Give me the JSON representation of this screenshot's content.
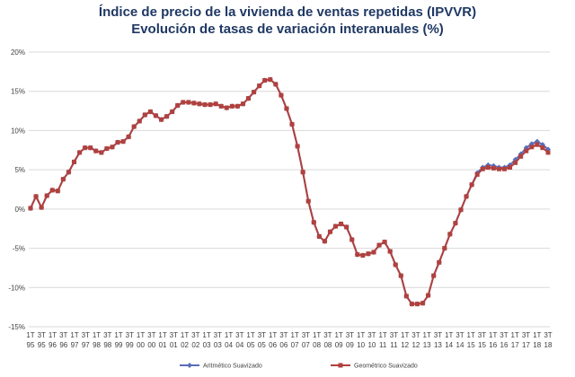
{
  "chart_data": {
    "type": "line",
    "title": "Índice de precio de la vivienda de ventas repetidas (IPVVR)",
    "subtitle": "Evolución de tasas de variación interanuales (%)",
    "ylim": [
      -15,
      20
    ],
    "yticks": [
      "20%",
      "15%",
      "10%",
      "5%",
      "0%",
      "-5%",
      "-10%",
      "-15%"
    ],
    "ytick_values": [
      20,
      15,
      10,
      5,
      0,
      -5,
      -10,
      -15
    ],
    "grid": "horizontal",
    "legend_position": "bottom",
    "x_tick_labels": [
      {
        "q": "1T",
        "y": "95"
      },
      {
        "q": "3T",
        "y": "95"
      },
      {
        "q": "1T",
        "y": "96"
      },
      {
        "q": "3T",
        "y": "96"
      },
      {
        "q": "1T",
        "y": "97"
      },
      {
        "q": "3T",
        "y": "97"
      },
      {
        "q": "1T",
        "y": "98"
      },
      {
        "q": "3T",
        "y": "98"
      },
      {
        "q": "1T",
        "y": "99"
      },
      {
        "q": "3T",
        "y": "99"
      },
      {
        "q": "1T",
        "y": "00"
      },
      {
        "q": "3T",
        "y": "00"
      },
      {
        "q": "1T",
        "y": "01"
      },
      {
        "q": "3T",
        "y": "01"
      },
      {
        "q": "1T",
        "y": "02"
      },
      {
        "q": "3T",
        "y": "02"
      },
      {
        "q": "1T",
        "y": "03"
      },
      {
        "q": "3T",
        "y": "03"
      },
      {
        "q": "1T",
        "y": "04"
      },
      {
        "q": "3T",
        "y": "04"
      },
      {
        "q": "1T",
        "y": "05"
      },
      {
        "q": "3T",
        "y": "05"
      },
      {
        "q": "1T",
        "y": "06"
      },
      {
        "q": "3T",
        "y": "06"
      },
      {
        "q": "1T",
        "y": "07"
      },
      {
        "q": "3T",
        "y": "07"
      },
      {
        "q": "1T",
        "y": "08"
      },
      {
        "q": "3T",
        "y": "08"
      },
      {
        "q": "1T",
        "y": "09"
      },
      {
        "q": "3T",
        "y": "09"
      },
      {
        "q": "1T",
        "y": "10"
      },
      {
        "q": "3T",
        "y": "10"
      },
      {
        "q": "1T",
        "y": "11"
      },
      {
        "q": "3T",
        "y": "11"
      },
      {
        "q": "1T",
        "y": "12"
      },
      {
        "q": "3T",
        "y": "12"
      },
      {
        "q": "1T",
        "y": "13"
      },
      {
        "q": "3T",
        "y": "13"
      },
      {
        "q": "1T",
        "y": "14"
      },
      {
        "q": "3T",
        "y": "14"
      },
      {
        "q": "1T",
        "y": "15"
      },
      {
        "q": "3T",
        "y": "15"
      },
      {
        "q": "1T",
        "y": "16"
      },
      {
        "q": "3T",
        "y": "16"
      },
      {
        "q": "1T",
        "y": "17"
      },
      {
        "q": "3T",
        "y": "17"
      },
      {
        "q": "1T",
        "y": "18"
      },
      {
        "q": "3T",
        "y": "18"
      }
    ],
    "series": [
      {
        "name": "Aritmético Suavizado",
        "color": "#5b6db8",
        "marker": "diamond",
        "values": [
          0.1,
          1.6,
          0.2,
          1.7,
          2.4,
          2.3,
          3.8,
          4.7,
          6.0,
          7.2,
          7.8,
          7.8,
          7.4,
          7.2,
          7.7,
          7.9,
          8.5,
          8.6,
          9.2,
          10.5,
          11.2,
          12.0,
          12.4,
          11.9,
          11.4,
          11.8,
          12.4,
          13.2,
          13.6,
          13.6,
          13.5,
          13.4,
          13.3,
          13.3,
          13.4,
          13.1,
          12.9,
          13.1,
          13.1,
          13.4,
          14.1,
          14.9,
          15.7,
          16.4,
          16.5,
          15.9,
          14.5,
          12.8,
          10.8,
          8.0,
          4.7,
          1.0,
          -1.7,
          -3.5,
          -4.1,
          -2.9,
          -2.2,
          -1.9,
          -2.3,
          -3.9,
          -5.8,
          -5.9,
          -5.7,
          -5.5,
          -4.6,
          -4.2,
          -5.4,
          -7.1,
          -8.5,
          -11.1,
          -12.1,
          -12.1,
          -12.0,
          -11.0,
          -8.5,
          -6.8,
          -5.0,
          -3.2,
          -1.8,
          -0.1,
          1.6,
          3.1,
          4.6,
          5.3,
          5.6,
          5.5,
          5.3,
          5.3,
          5.6,
          6.3,
          7.0,
          7.8,
          8.3,
          8.6,
          8.2,
          7.6
        ]
      },
      {
        "name": "Geométrico Suavizado",
        "color": "#b0413e",
        "marker": "square",
        "values": [
          0.1,
          1.6,
          0.2,
          1.7,
          2.4,
          2.3,
          3.8,
          4.7,
          6.0,
          7.2,
          7.8,
          7.8,
          7.4,
          7.2,
          7.7,
          7.9,
          8.5,
          8.6,
          9.2,
          10.5,
          11.2,
          12.0,
          12.4,
          11.9,
          11.4,
          11.8,
          12.4,
          13.2,
          13.6,
          13.6,
          13.5,
          13.4,
          13.3,
          13.3,
          13.4,
          13.1,
          12.9,
          13.1,
          13.1,
          13.4,
          14.1,
          14.9,
          15.7,
          16.4,
          16.5,
          15.9,
          14.5,
          12.8,
          10.8,
          8.0,
          4.7,
          1.0,
          -1.7,
          -3.5,
          -4.1,
          -2.9,
          -2.2,
          -1.9,
          -2.3,
          -3.9,
          -5.8,
          -5.9,
          -5.7,
          -5.5,
          -4.6,
          -4.2,
          -5.4,
          -7.1,
          -8.5,
          -11.1,
          -12.1,
          -12.1,
          -12.0,
          -11.0,
          -8.5,
          -6.8,
          -5.0,
          -3.2,
          -1.8,
          -0.1,
          1.6,
          3.1,
          4.4,
          5.1,
          5.3,
          5.2,
          5.1,
          5.1,
          5.3,
          5.9,
          6.7,
          7.4,
          7.9,
          8.2,
          7.8,
          7.2
        ]
      }
    ]
  }
}
